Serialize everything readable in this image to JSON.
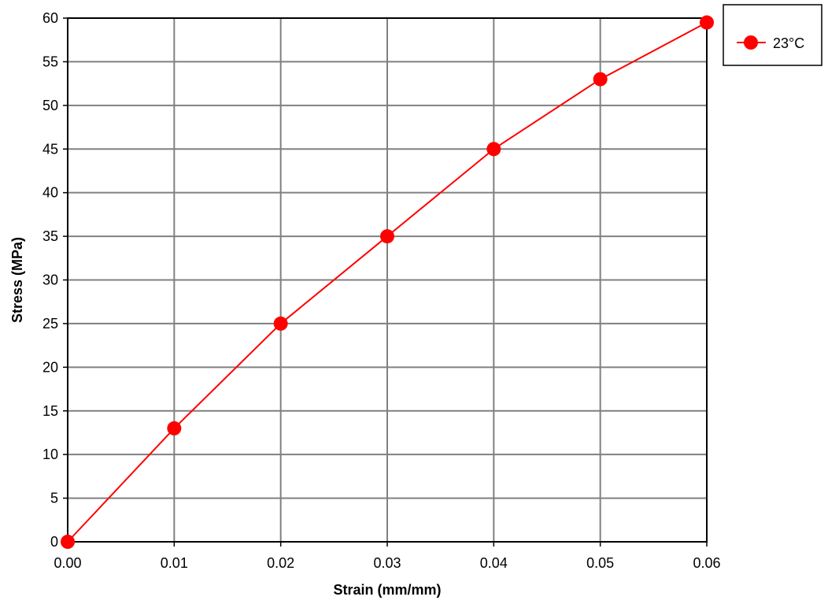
{
  "chart_data": {
    "type": "line",
    "title": "",
    "xlabel": "Strain (mm/mm)",
    "ylabel": "Stress (MPa)",
    "xlim": [
      0,
      0.06
    ],
    "ylim": [
      0,
      60
    ],
    "x_ticks": [
      "0.00",
      "0.01",
      "0.02",
      "0.03",
      "0.04",
      "0.05",
      "0.06"
    ],
    "y_ticks": [
      "0",
      "5",
      "10",
      "15",
      "20",
      "25",
      "30",
      "35",
      "40",
      "45",
      "50",
      "55",
      "60"
    ],
    "grid": true,
    "legend_position": "top-right, outside plot area",
    "series": [
      {
        "name": "23°C",
        "color": "#ff0000",
        "marker": "circle",
        "x": [
          0.0,
          0.01,
          0.02,
          0.03,
          0.04,
          0.05,
          0.06
        ],
        "y": [
          0,
          13,
          25,
          35,
          45,
          53,
          59.5
        ]
      }
    ]
  }
}
